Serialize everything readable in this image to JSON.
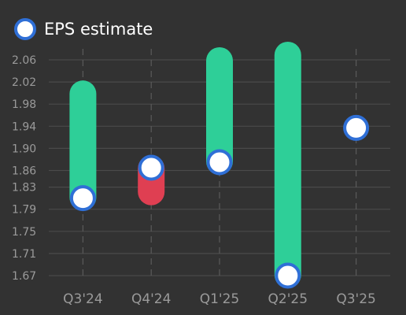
{
  "legend": {
    "label": "EPS estimate",
    "icon": "circle-marker-icon"
  },
  "chart_data": {
    "type": "range-dot",
    "categories": [
      "Q3'24",
      "Q4'24",
      "Q1'25",
      "Q2'25",
      "Q3'25"
    ],
    "series": [
      {
        "name": "EPS estimate",
        "values": [
          1.81,
          1.865,
          1.875,
          1.67,
          1.937
        ]
      }
    ],
    "ranges": [
      {
        "category": "Q3'24",
        "low": 1.81,
        "high": 2.0,
        "direction": "up"
      },
      {
        "category": "Q4'24",
        "low": 1.82,
        "high": 1.865,
        "direction": "down"
      },
      {
        "category": "Q1'25",
        "low": 1.875,
        "high": 2.06,
        "direction": "up"
      },
      {
        "category": "Q2'25",
        "low": 1.67,
        "high": 2.07,
        "direction": "up"
      },
      {
        "category": "Q3'25",
        "low": null,
        "high": null,
        "direction": null
      }
    ],
    "yticks": [
      "2.06",
      "2.02",
      "1.98",
      "1.94",
      "1.90",
      "1.86",
      "1.83",
      "1.79",
      "1.75",
      "1.71",
      "1.67"
    ],
    "ylim": [
      1.655,
      2.075
    ],
    "grid": true,
    "legend_position": "top-left",
    "title": "",
    "xlabel": "",
    "ylabel": ""
  },
  "colors": {
    "background": "#323232",
    "grid": "#4a4a4a",
    "vertical_grid": "#5a5a5a",
    "tick_text": "#9a9a9a",
    "up": "#2ecf98",
    "down": "#df3f52",
    "marker_fill": "#ffffff",
    "marker_stroke": "#2f6fd6"
  }
}
